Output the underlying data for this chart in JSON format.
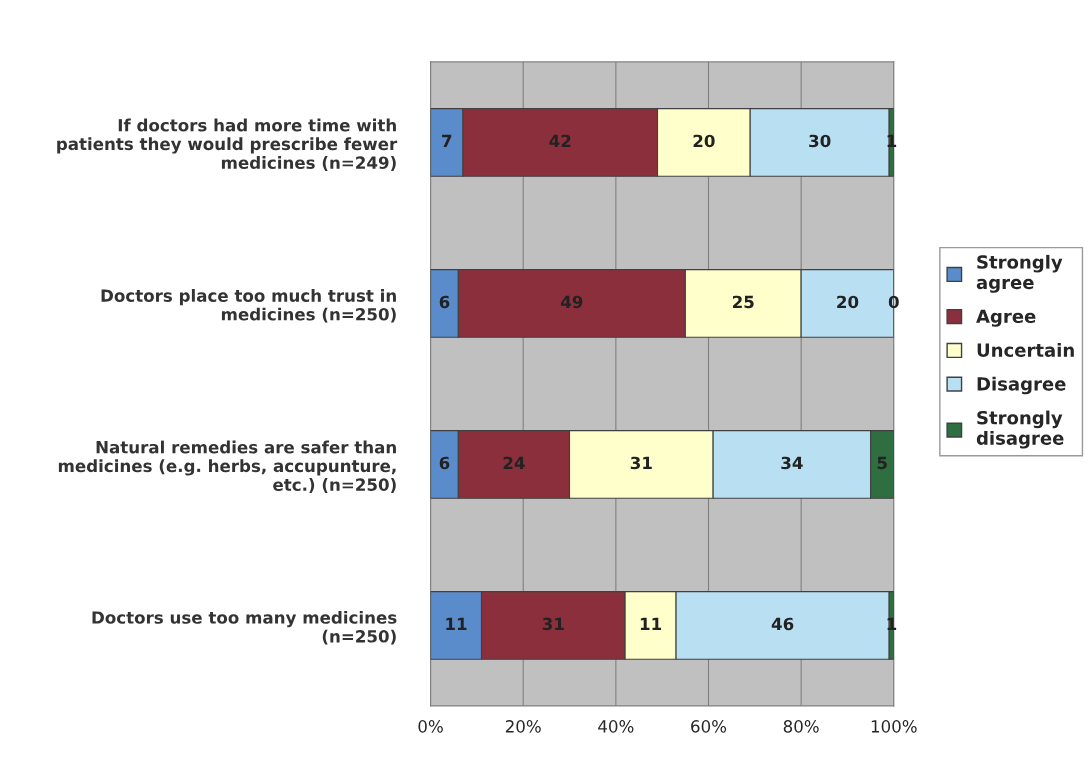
{
  "chart_data": {
    "type": "bar",
    "orientation": "horizontal",
    "stacked": true,
    "categories": [
      "If doctors had more time with patients they would prescribe fewer medicines (n=249)",
      "Doctors place too much trust in medicines (n=250)",
      "Natural remedies are safer than medicines (e.g. herbs, accupunture, etc.) (n=250)",
      "Doctors use too many medicines (n=250)"
    ],
    "series": [
      {
        "name": "Strongly agree",
        "color": "#5a8ccc",
        "values": [
          7,
          6,
          6,
          11
        ]
      },
      {
        "name": "Agree",
        "color": "#8c2f3c",
        "values": [
          42,
          49,
          24,
          31
        ]
      },
      {
        "name": "Uncertain",
        "color": "#ffffcc",
        "values": [
          20,
          25,
          31,
          11
        ]
      },
      {
        "name": "Disagree",
        "color": "#b9e0f2",
        "values": [
          30,
          20,
          34,
          46
        ]
      },
      {
        "name": "Strongly disagree",
        "color": "#2f6e40",
        "values": [
          1,
          0,
          5,
          1
        ]
      }
    ],
    "xlim": [
      0,
      100
    ],
    "xticks": [
      {
        "value": 0,
        "label": "0%"
      },
      {
        "value": 20,
        "label": "20%"
      },
      {
        "value": 40,
        "label": "40%"
      },
      {
        "value": 60,
        "label": "60%"
      },
      {
        "value": 80,
        "label": "80%"
      },
      {
        "value": 100,
        "label": "100%"
      }
    ],
    "grid": "x",
    "legend": "right",
    "data_labels": true
  }
}
